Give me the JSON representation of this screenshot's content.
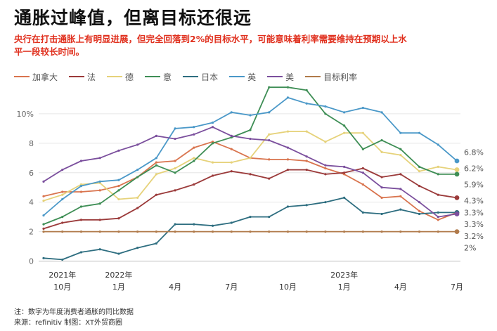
{
  "header": {
    "title": "通胀过峰值，但离目标还很远",
    "subtitle": "央行在打击通胀上有明显进展，但完全回落到2%的目标水平，可能意味着利率需要维持在预期以上水平一段较长时间。"
  },
  "footer": {
    "note": "注：数字为年度消费者通胀的同比数据",
    "source": "来源：refinitiv 制图：XT外贸商圈"
  },
  "chart_data": {
    "type": "line",
    "title": "",
    "xlabel": "",
    "ylabel": "",
    "ylim": [
      -0.5,
      12
    ],
    "yticks": [
      0,
      2,
      4,
      6,
      8,
      10
    ],
    "ytick_labels": [
      "0",
      "2",
      "4",
      "6",
      "8",
      "10%"
    ],
    "grid": true,
    "legend_position": "top",
    "x": [
      "2021-09",
      "2021-10",
      "2021-11",
      "2021-12",
      "2022-01",
      "2022-02",
      "2022-03",
      "2022-04",
      "2022-05",
      "2022-06",
      "2022-07",
      "2022-08",
      "2022-09",
      "2022-10",
      "2022-11",
      "2022-12",
      "2023-01",
      "2023-02",
      "2023-03",
      "2023-04",
      "2023-05",
      "2023-06",
      "2023-07"
    ],
    "x_tick_labels": [
      {
        "month": "2021-10",
        "line1": "2021年",
        "line2": "10月"
      },
      {
        "month": "2022-01",
        "line1": "2022年",
        "line2": "1月"
      },
      {
        "month": "2022-04",
        "line1": "",
        "line2": "4月"
      },
      {
        "month": "2022-07",
        "line1": "",
        "line2": "7月"
      },
      {
        "month": "2022-10",
        "line1": "",
        "line2": "10月"
      },
      {
        "month": "2023-01",
        "line1": "2023年",
        "line2": "1月"
      },
      {
        "month": "2023-04",
        "line1": "",
        "line2": "4月"
      },
      {
        "month": "2023-07",
        "line1": "",
        "line2": "7月"
      }
    ],
    "series": [
      {
        "name": "加拿大",
        "color": "#d9744e",
        "values": [
          4.4,
          4.7,
          4.7,
          4.8,
          5.1,
          5.7,
          6.7,
          6.8,
          7.7,
          8.1,
          7.6,
          7.0,
          6.9,
          6.9,
          6.8,
          6.3,
          5.9,
          5.2,
          4.3,
          4.4,
          3.4,
          2.8,
          3.3
        ]
      },
      {
        "name": "法",
        "color": "#9b3a3a",
        "values": [
          2.2,
          2.6,
          2.8,
          2.8,
          2.9,
          3.6,
          4.5,
          4.8,
          5.2,
          5.8,
          6.1,
          5.9,
          5.6,
          6.2,
          6.2,
          5.9,
          6.0,
          6.3,
          5.7,
          5.9,
          5.1,
          4.5,
          4.3
        ]
      },
      {
        "name": "德",
        "color": "#e6d27a",
        "values": [
          4.1,
          4.5,
          5.2,
          5.3,
          4.2,
          4.3,
          5.9,
          6.3,
          7.0,
          6.7,
          6.7,
          7.0,
          8.6,
          8.8,
          8.8,
          8.1,
          8.7,
          8.7,
          7.4,
          7.2,
          6.1,
          6.4,
          6.2
        ]
      },
      {
        "name": "意",
        "color": "#3e8e55",
        "values": [
          2.5,
          3.0,
          3.7,
          3.9,
          4.8,
          5.7,
          6.5,
          6.0,
          6.8,
          8.0,
          8.4,
          8.9,
          11.8,
          11.8,
          11.6,
          10.0,
          9.2,
          7.6,
          8.2,
          7.6,
          6.4,
          5.9,
          5.9
        ]
      },
      {
        "name": "日本",
        "color": "#2e6e80",
        "values": [
          0.2,
          0.1,
          0.6,
          0.8,
          0.5,
          0.9,
          1.2,
          2.5,
          2.5,
          2.4,
          2.6,
          3.0,
          3.0,
          3.7,
          3.8,
          4.0,
          4.3,
          3.3,
          3.2,
          3.5,
          3.2,
          3.3,
          3.3
        ]
      },
      {
        "name": "英",
        "color": "#4a98c8",
        "values": [
          3.1,
          4.2,
          5.1,
          5.4,
          5.5,
          6.2,
          7.0,
          9.0,
          9.1,
          9.4,
          10.1,
          9.9,
          10.1,
          11.1,
          10.7,
          10.5,
          10.1,
          10.4,
          10.1,
          8.7,
          8.7,
          7.9,
          6.8
        ]
      },
      {
        "name": "美",
        "color": "#7b4f9d",
        "values": [
          5.4,
          6.2,
          6.8,
          7.0,
          7.5,
          7.9,
          8.5,
          8.3,
          8.6,
          9.1,
          8.5,
          8.3,
          8.2,
          7.7,
          7.1,
          6.5,
          6.4,
          6.0,
          5.0,
          4.9,
          4.0,
          3.0,
          3.2
        ]
      },
      {
        "name": "目标利率",
        "color": "#b07a4a",
        "values": [
          2.0,
          2.0,
          2.0,
          2.0,
          2.0,
          2.0,
          2.0,
          2.0,
          2.0,
          2.0,
          2.0,
          2.0,
          2.0,
          2.0,
          2.0,
          2.0,
          2.0,
          2.0,
          2.0,
          2.0,
          2.0,
          2.0,
          2.0
        ]
      }
    ],
    "end_labels": [
      {
        "text": "6.8%",
        "y": 7.4
      },
      {
        "text": "6.2%",
        "y": 6.3
      },
      {
        "text": "5.9%",
        "y": 5.2
      },
      {
        "text": "4.3%",
        "y": 4.1
      },
      {
        "text": "3.3%",
        "y": 3.3
      },
      {
        "text": "3.3%",
        "y": 2.5
      },
      {
        "text": "3.2%",
        "y": 1.7
      },
      {
        "text": "2%",
        "y": 0.9
      }
    ]
  }
}
